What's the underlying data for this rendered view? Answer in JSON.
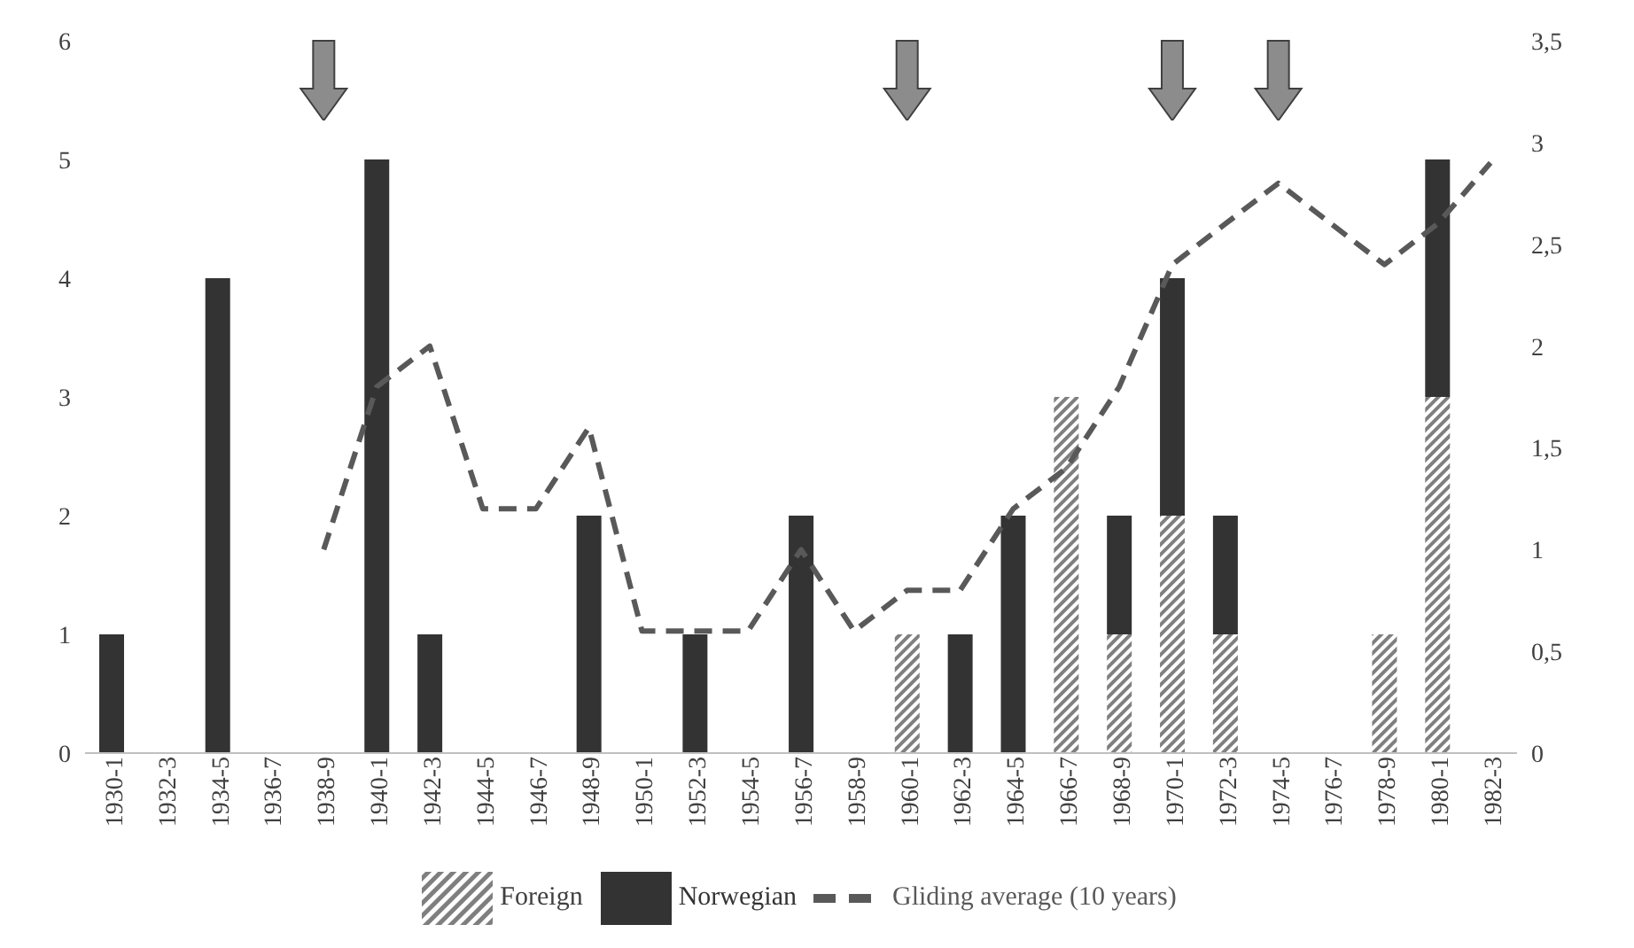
{
  "chart_data": {
    "type": "bar",
    "stacked": true,
    "categories": [
      "1930-1",
      "1932-3",
      "1934-5",
      "1936-7",
      "1938-9",
      "1940-1",
      "1942-3",
      "1944-5",
      "1946-7",
      "1948-9",
      "1950-1",
      "1952-3",
      "1954-5",
      "1956-7",
      "1958-9",
      "1960-1",
      "1962-3",
      "1964-5",
      "1966-7",
      "1968-9",
      "1970-1",
      "1972-3",
      "1974-5",
      "1976-7",
      "1978-9",
      "1980-1",
      "1982-3"
    ],
    "series": [
      {
        "name": "Foreign",
        "color": "#7f7f7f",
        "values": [
          0,
          0,
          0,
          0,
          0,
          0,
          0,
          0,
          0,
          0,
          0,
          0,
          0,
          0,
          0,
          1,
          0,
          0,
          3,
          1,
          2,
          1,
          0,
          0,
          1,
          3,
          0
        ]
      },
      {
        "name": "Norwegian",
        "color": "#333333",
        "values": [
          1,
          0,
          4,
          0,
          0,
          5,
          1,
          0,
          0,
          2,
          0,
          1,
          0,
          2,
          0,
          0,
          1,
          2,
          0,
          1,
          2,
          1,
          0,
          0,
          0,
          2,
          0
        ]
      },
      {
        "name": "Gliding average (10 years)",
        "type": "line",
        "axis": "y2",
        "color": "#595959",
        "line_style": "dashed",
        "marker": "none",
        "values": [
          null,
          null,
          null,
          null,
          1,
          1.8,
          2,
          1.2,
          1.2,
          1.6,
          0.6,
          0.6,
          0.6,
          1,
          0.6,
          0.8,
          0.8,
          1.2,
          1.4,
          1.8,
          2.4,
          2.6,
          2.8,
          2.6,
          2.4,
          2.6,
          2.9
        ]
      }
    ],
    "ylim": [
      0,
      6
    ],
    "yticks": [
      0,
      1,
      2,
      3,
      4,
      5,
      6
    ],
    "y2lim": [
      0,
      3.5
    ],
    "y2ticks": [
      0,
      {
        "value": 0.5,
        "label": "0,5"
      },
      1,
      {
        "value": 1.5,
        "label": "1,5"
      },
      2,
      {
        "value": 2.5,
        "label": "2,5"
      },
      3,
      {
        "value": 3.5,
        "label": "3,5"
      }
    ],
    "legend": "bottom"
  }
}
